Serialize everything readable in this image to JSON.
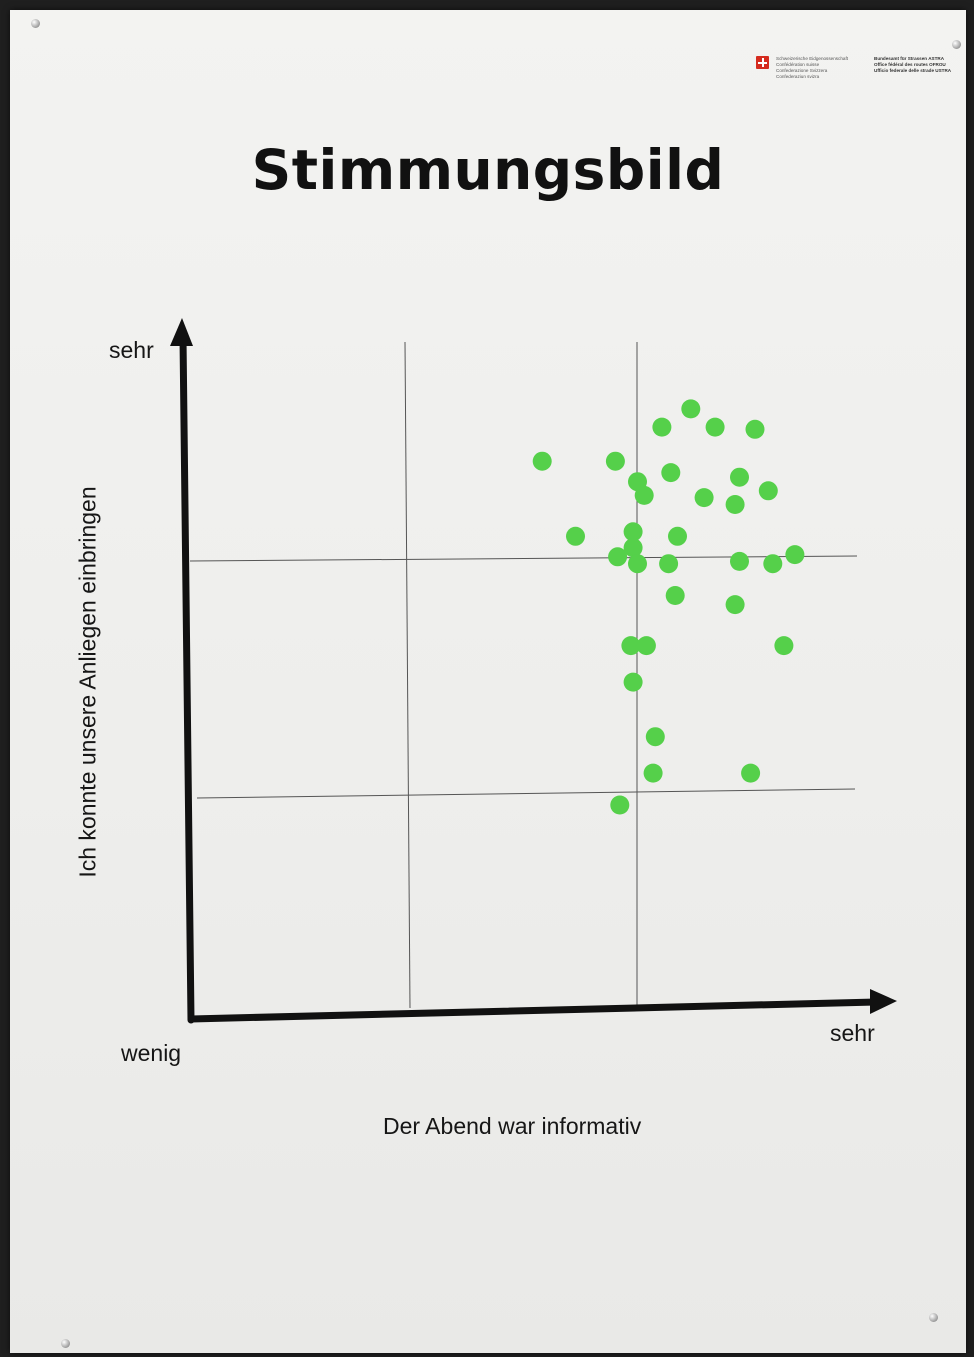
{
  "poster": {
    "title": "Stimmungsbild",
    "logo": {
      "left_lines": [
        "Schweizerische Eidgenossenschaft",
        "Confédération suisse",
        "Confederazione Svizzera",
        "Confederaziun svizra"
      ],
      "right_lines": [
        "Bundesamt für Strassen ASTRA",
        "Office fédéral des routes OFROU",
        "Ufficio federale delle strade USTRA"
      ]
    }
  },
  "chart_data": {
    "type": "scatter",
    "title": "Stimmungsbild",
    "xlabel": "Der Abend war informativ",
    "ylabel": "Ich konnte unsere Anliegen einbringen",
    "x_low_label": "wenig",
    "x_high_label": "sehr",
    "y_high_label": "sehr",
    "xlim": [
      0,
      3
    ],
    "ylim": [
      0,
      3
    ],
    "grid": true,
    "dot_color": "#55d04a",
    "points": [
      {
        "x": 1.58,
        "y": 2.45
      },
      {
        "x": 1.91,
        "y": 2.45
      },
      {
        "x": 2.12,
        "y": 2.6
      },
      {
        "x": 2.25,
        "y": 2.68
      },
      {
        "x": 2.36,
        "y": 2.6
      },
      {
        "x": 2.54,
        "y": 2.59
      },
      {
        "x": 2.16,
        "y": 2.4
      },
      {
        "x": 2.47,
        "y": 2.38
      },
      {
        "x": 2.01,
        "y": 2.36
      },
      {
        "x": 2.04,
        "y": 2.3
      },
      {
        "x": 2.31,
        "y": 2.29
      },
      {
        "x": 2.6,
        "y": 2.32
      },
      {
        "x": 2.45,
        "y": 2.26
      },
      {
        "x": 1.73,
        "y": 2.12
      },
      {
        "x": 1.99,
        "y": 2.14
      },
      {
        "x": 2.19,
        "y": 2.12
      },
      {
        "x": 1.99,
        "y": 2.07
      },
      {
        "x": 1.92,
        "y": 2.03
      },
      {
        "x": 2.01,
        "y": 2.0
      },
      {
        "x": 2.15,
        "y": 2.0
      },
      {
        "x": 2.47,
        "y": 2.01
      },
      {
        "x": 2.62,
        "y": 2.0
      },
      {
        "x": 2.72,
        "y": 2.04
      },
      {
        "x": 2.18,
        "y": 1.86
      },
      {
        "x": 2.45,
        "y": 1.82
      },
      {
        "x": 1.98,
        "y": 1.64
      },
      {
        "x": 2.05,
        "y": 1.64
      },
      {
        "x": 2.67,
        "y": 1.64
      },
      {
        "x": 1.99,
        "y": 1.48
      },
      {
        "x": 2.09,
        "y": 1.24
      },
      {
        "x": 2.08,
        "y": 1.08
      },
      {
        "x": 2.52,
        "y": 1.08
      },
      {
        "x": 1.93,
        "y": 0.94
      }
    ]
  }
}
